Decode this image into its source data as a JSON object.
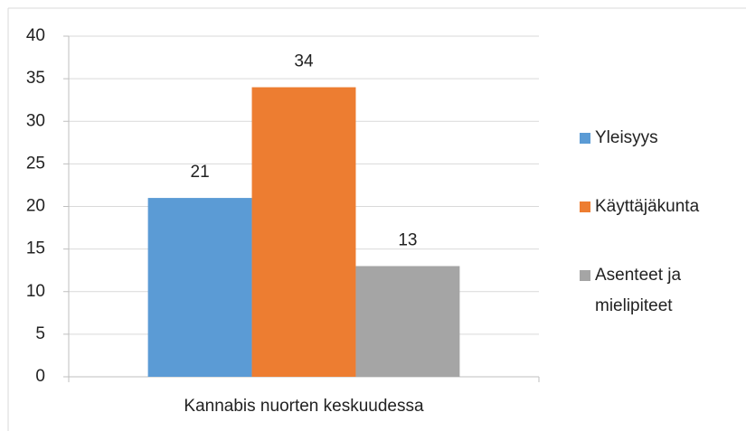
{
  "chart_data": {
    "type": "bar",
    "categories": [
      "Kannabis nuorten keskuudessa"
    ],
    "series": [
      {
        "name": "Yleisyys",
        "color": "#5b9bd5",
        "values": [
          21
        ]
      },
      {
        "name": "Käyttäjäkunta",
        "color": "#ed7d31",
        "values": [
          34
        ]
      },
      {
        "name": "Asenteet ja mielipiteet",
        "color": "#a5a5a5",
        "values": [
          13
        ]
      }
    ],
    "ylim": [
      0,
      40
    ],
    "yticks": [
      0,
      5,
      10,
      15,
      20,
      25,
      30,
      35,
      40
    ],
    "grid": true,
    "legend": "right"
  }
}
